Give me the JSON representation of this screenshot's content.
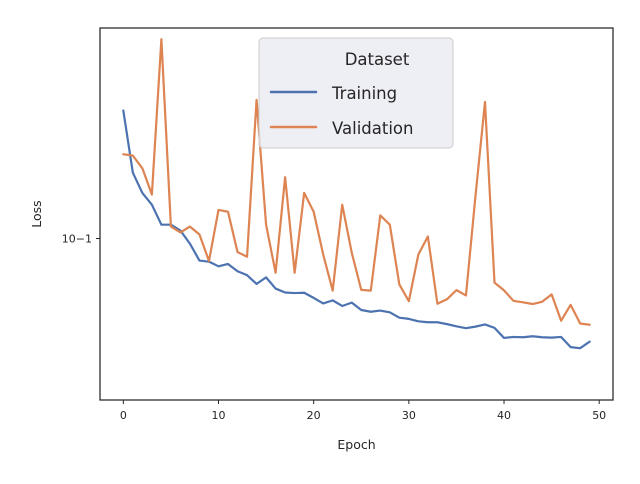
{
  "chart_data": {
    "type": "line",
    "title": "",
    "xlabel": "Epoch",
    "ylabel": "Loss",
    "xscale": "linear",
    "yscale": "log",
    "xlim": [
      -2.45,
      51.45
    ],
    "ylim": [
      0.0454,
      0.28
    ],
    "xticks": [
      0,
      10,
      20,
      30,
      40,
      50
    ],
    "xtick_labels": [
      "0",
      "10",
      "20",
      "30",
      "40",
      "50"
    ],
    "yticks": [
      0.1
    ],
    "ytick_labels": [
      "10−1"
    ],
    "grid": false,
    "legend": {
      "title": "Dataset",
      "placement": "upper center"
    },
    "series": [
      {
        "name": "Training",
        "color": "#4c72b0",
        "x": [
          0,
          1,
          2,
          3,
          4,
          5,
          6,
          7,
          8,
          9,
          10,
          11,
          12,
          13,
          14,
          15,
          16,
          17,
          18,
          19,
          20,
          21,
          22,
          23,
          24,
          25,
          26,
          27,
          28,
          29,
          30,
          31,
          32,
          33,
          34,
          35,
          36,
          37,
          38,
          39,
          40,
          41,
          42,
          43,
          44,
          45,
          46,
          47,
          48,
          49
        ],
        "y": [
          0.187,
          0.138,
          0.125,
          0.118,
          0.107,
          0.107,
          0.104,
          0.0975,
          0.0898,
          0.0893,
          0.0873,
          0.0883,
          0.0852,
          0.0836,
          0.0801,
          0.0827,
          0.0783,
          0.0768,
          0.0766,
          0.0767,
          0.0748,
          0.0728,
          0.0739,
          0.0719,
          0.0731,
          0.0705,
          0.0699,
          0.0703,
          0.0697,
          0.0679,
          0.0675,
          0.0667,
          0.0664,
          0.0664,
          0.0658,
          0.0651,
          0.0645,
          0.065,
          0.0657,
          0.0646,
          0.0615,
          0.0618,
          0.0617,
          0.062,
          0.0617,
          0.0616,
          0.0618,
          0.0588,
          0.0585,
          0.0604
        ]
      },
      {
        "name": "Validation",
        "color": "#dd8452",
        "x": [
          0,
          1,
          2,
          3,
          4,
          5,
          6,
          7,
          8,
          9,
          10,
          11,
          12,
          13,
          14,
          15,
          16,
          17,
          18,
          19,
          20,
          21,
          22,
          23,
          24,
          25,
          26,
          27,
          28,
          29,
          30,
          31,
          32,
          33,
          34,
          35,
          36,
          37,
          38,
          39,
          40,
          41,
          42,
          43,
          44,
          45,
          46,
          47,
          48,
          49
        ],
        "y": [
          0.151,
          0.15,
          0.141,
          0.124,
          0.265,
          0.106,
          0.103,
          0.106,
          0.102,
          0.0896,
          0.115,
          0.114,
          0.0936,
          0.0915,
          0.197,
          0.107,
          0.0846,
          0.135,
          0.0846,
          0.125,
          0.114,
          0.0925,
          0.0775,
          0.118,
          0.0933,
          0.0778,
          0.0775,
          0.112,
          0.107,
          0.0799,
          0.0736,
          0.0925,
          0.101,
          0.0727,
          0.0743,
          0.0777,
          0.0757,
          0.123,
          0.195,
          0.0806,
          0.0776,
          0.0737,
          0.0732,
          0.0726,
          0.0734,
          0.0761,
          0.0669,
          0.0723,
          0.066,
          0.0656
        ]
      }
    ]
  }
}
